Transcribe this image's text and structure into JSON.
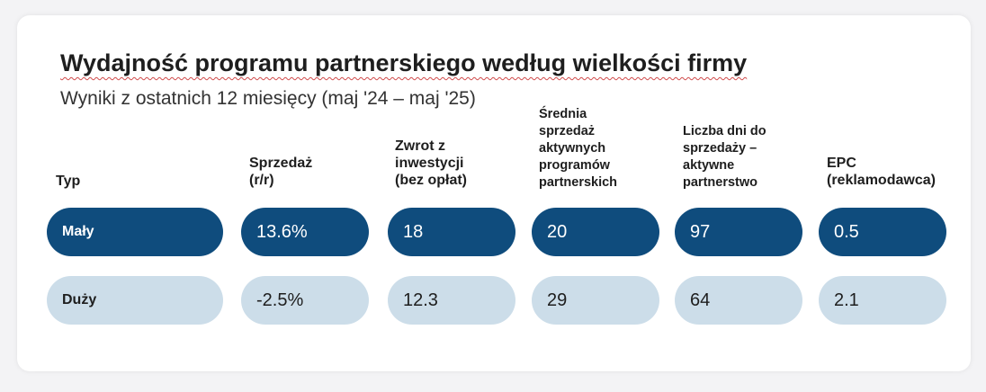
{
  "title": "Wydajność programu partnerskiego według wielkości firmy",
  "subtitle": "Wyniki z ostatnich 12 miesięcy (maj '24 – maj '25)",
  "chart_data": {
    "type": "table",
    "title": "Wydajność programu partnerskiego według wielkości firmy",
    "subtitle": "Wyniki z ostatnich 12 miesięcy (maj '24 – maj '25)",
    "columns": [
      "Typ",
      "Sprzedaż\n(r/r)",
      "Zwrot z\ninwestycji\n(bez opłat)",
      "Średnia\nsprzedaż\naktywnych\nprogramów\npartnerskich",
      "Liczba dni do\nsprzedaży –\naktywne\npartnerstwo",
      "EPC\n(reklamodawca)"
    ],
    "rows": [
      {
        "Typ": "Mały",
        "values": [
          "13.6%",
          "18",
          "20",
          "97",
          "0.5"
        ]
      },
      {
        "Typ": "Duży",
        "values": [
          "-2.5%",
          "12.3",
          "29",
          "64",
          "2.1"
        ]
      }
    ],
    "colors": {
      "row_highlight": "#0f4c7d",
      "row_normal": "#ccdde9"
    }
  }
}
